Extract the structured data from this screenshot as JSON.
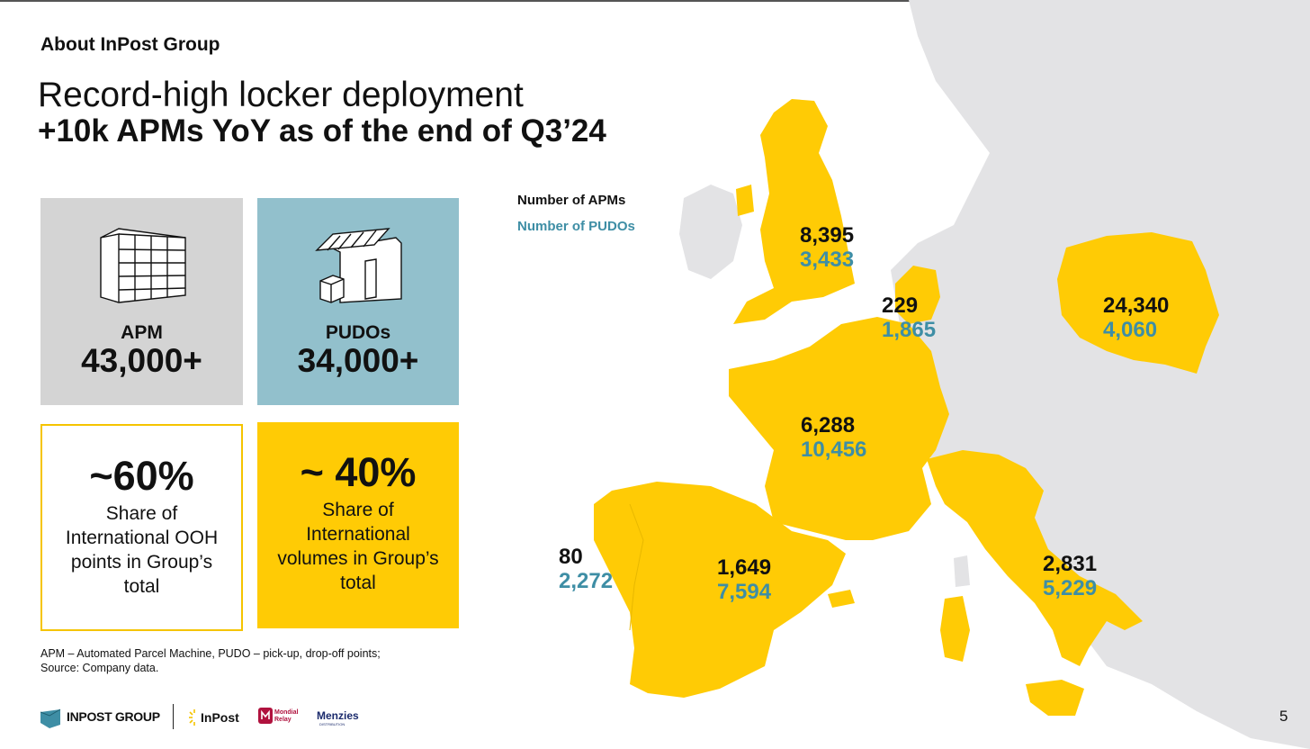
{
  "header": {
    "section": "About InPost Group",
    "title_line1": "Record-high locker deployment",
    "title_line2": "+10k APMs YoY as of the end of Q3’24"
  },
  "boxes": {
    "apm": {
      "label": "APM",
      "value": "43,000+",
      "icon": "parcel-locker-icon"
    },
    "pudo": {
      "label": "PUDOs",
      "value": "34,000+",
      "icon": "pudo-shop-icon"
    },
    "ooh_share": {
      "value": "~60%",
      "description": "Share of International OOH points in Group’s total"
    },
    "volume_share": {
      "value": "~ 40%",
      "description": "Share of International volumes in Group’s total"
    }
  },
  "footnote": {
    "line1": "APM – Automated Parcel Machine, PUDO – pick-up, drop-off points;",
    "line2": "Source: Company data."
  },
  "legend": {
    "apm": "Number of APMs",
    "pudo": "Number of PUDOs"
  },
  "countries": [
    {
      "apm": "8,395",
      "pudo": "3,433"
    },
    {
      "apm": "229",
      "pudo": "1,865"
    },
    {
      "apm": "24,340",
      "pudo": "4,060"
    },
    {
      "apm": "6,288",
      "pudo": "10,456"
    },
    {
      "apm": "80",
      "pudo": "2,272"
    },
    {
      "apm": "1,649",
      "pudo": "7,594"
    },
    {
      "apm": "2,831",
      "pudo": "5,229"
    }
  ],
  "logos": {
    "inpost_group": "INPOST GROUP",
    "inpost": "InPost",
    "mondial_relay_line1": "Mondial",
    "mondial_relay_line2": "Relay",
    "menzies": "Menzies",
    "menzies_sub": "DISTRIBUTION"
  },
  "page_number": "5",
  "colors": {
    "yellow": "#ffcb05",
    "teal": "#3e8ea5",
    "pudo_box": "#92c0cc",
    "apm_box": "#d4d4d4",
    "map_grey": "#e3e3e5"
  }
}
